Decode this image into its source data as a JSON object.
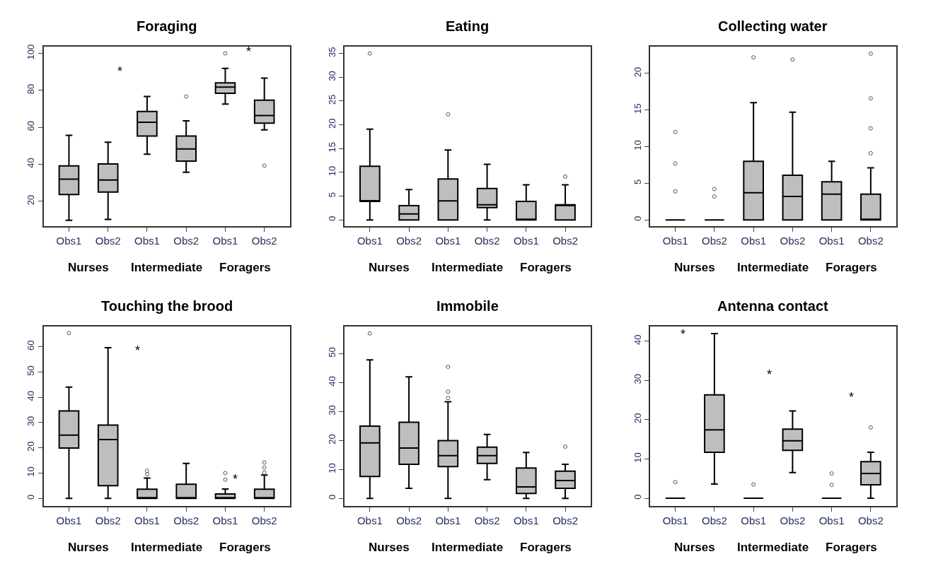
{
  "chart_data": [
    {
      "type": "box",
      "title": "Foraging",
      "categories": [
        "Obs1",
        "Obs2",
        "Obs1",
        "Obs2",
        "Obs1",
        "Obs2"
      ],
      "ylim": [
        6.6,
        103.8
      ],
      "yticks": [
        20,
        40,
        60,
        80,
        100
      ],
      "series": [
        {
          "color": "#bebebe",
          "boxes": [
            {
              "low": 9.7,
              "q1": 23.7,
              "median": 32,
              "q3": 39.2,
              "high": 55.7
            },
            {
              "low": 10.2,
              "q1": 25,
              "median": 31.5,
              "q3": 40.2,
              "high": 52
            },
            {
              "low": 45.5,
              "q1": 55.3,
              "median": 62.8,
              "q3": 68.6,
              "high": 76.7
            },
            {
              "low": 35.7,
              "q1": 41.7,
              "median": 48.3,
              "q3": 55.3,
              "high": 63.5,
              "outliers": [
                76.7
              ]
            },
            {
              "low": 72.6,
              "q1": 78.4,
              "median": 81.8,
              "q3": 84.1,
              "high": 91.9,
              "outliers": [
                100
              ]
            },
            {
              "low": 58.6,
              "q1": 62.3,
              "median": 66.4,
              "q3": 74.7,
              "high": 86.6,
              "outliers": [
                39.3
              ]
            }
          ]
        }
      ],
      "annotations": [
        "Nurses",
        "Intermediate",
        "Foragers",
        "*",
        "*"
      ]
    },
    {
      "type": "box",
      "title": "Eating",
      "categories": [
        "Obs1",
        "Obs2",
        "Obs1",
        "Obs2",
        "Obs1",
        "Obs2"
      ],
      "ylim": [
        -1.3,
        36.5
      ],
      "yticks": [
        0,
        5,
        10,
        15,
        20,
        25,
        30,
        35
      ],
      "series": [
        {
          "color": "#bebebe",
          "boxes": [
            {
              "low": 0,
              "q1": 3.9,
              "median": 3.9,
              "q3": 11.3,
              "high": 19.1,
              "outliers": [
                35
              ]
            },
            {
              "low": 0,
              "q1": 0,
              "median": 1.25,
              "q3": 3,
              "high": 6.4
            },
            {
              "low": 0,
              "q1": 0,
              "median": 4,
              "q3": 8.6,
              "high": 14.7,
              "outliers": [
                22.2
              ]
            },
            {
              "low": 0,
              "q1": 2.6,
              "median": 3.2,
              "q3": 6.6,
              "high": 11.7
            },
            {
              "low": 0,
              "q1": 0,
              "median": 0,
              "q3": 3.9,
              "high": 7.4
            },
            {
              "low": 0,
              "q1": 0,
              "median": 3.2,
              "q3": 3.2,
              "high": 7.4,
              "outliers": [
                9.1
              ]
            }
          ]
        }
      ],
      "annotations": [
        "Nurses",
        "Intermediate",
        "Foragers"
      ]
    },
    {
      "type": "box",
      "title": "Collecting water",
      "categories": [
        "Obs1",
        "Obs2",
        "Obs1",
        "Obs2",
        "Obs1",
        "Obs2"
      ],
      "ylim": [
        -0.85,
        23.7
      ],
      "yticks": [
        0,
        5,
        10,
        15,
        20
      ],
      "series": [
        {
          "colors": [
            "#000000",
            "#000000",
            "#bebebe",
            "#bebebe",
            "#bebebe",
            "#bebebe"
          ],
          "boxes": [
            {
              "low": 0,
              "q1": 0,
              "median": 0,
              "q3": 0,
              "high": 0,
              "outliers": [
                12,
                7.7,
                3.9
              ]
            },
            {
              "low": 0,
              "q1": 0,
              "median": 0,
              "q3": 0,
              "high": 0,
              "outliers": [
                4.2,
                3.2
              ]
            },
            {
              "low": 0,
              "q1": 0,
              "median": 3.7,
              "q3": 8,
              "high": 16,
              "outliers": [
                22.2
              ]
            },
            {
              "low": 0,
              "q1": 0,
              "median": 3.2,
              "q3": 6.1,
              "high": 14.7,
              "outliers": [
                21.9
              ]
            },
            {
              "low": 0,
              "q1": 0,
              "median": 3.5,
              "q3": 5.2,
              "high": 8
            },
            {
              "low": 0,
              "q1": 0,
              "median": 0,
              "q3": 3.5,
              "high": 7.1,
              "outliers": [
                22.7,
                16.6,
                12.5,
                9.1
              ]
            }
          ]
        }
      ],
      "annotations": [
        "Nurses",
        "Intermediate",
        "Foragers"
      ]
    },
    {
      "type": "box",
      "title": "Touching the brood",
      "categories": [
        "Obs1",
        "Obs2",
        "Obs1",
        "Obs2",
        "Obs1",
        "Obs2"
      ],
      "ylim": [
        -2.9,
        68
      ],
      "yticks": [
        0,
        10,
        20,
        30,
        40,
        50,
        60
      ],
      "series": [
        {
          "color": "#bebebe",
          "boxes": [
            {
              "low": 0,
              "q1": 19.9,
              "median": 25,
              "q3": 34.6,
              "high": 44,
              "outliers": [
                65.4
              ]
            },
            {
              "low": 0,
              "q1": 5,
              "median": 23.3,
              "q3": 29,
              "high": 59.6
            },
            {
              "low": 0,
              "q1": 0,
              "median": 0,
              "q3": 3.6,
              "high": 8,
              "outliers": [
                10.9,
                9.5
              ]
            },
            {
              "low": 0,
              "q1": 0,
              "median": 0,
              "q3": 5.6,
              "high": 13.8
            },
            {
              "low": 0,
              "q1": 0,
              "median": 0,
              "q3": 1.7,
              "high": 3.7,
              "outliers": [
                10,
                7.4
              ]
            },
            {
              "low": 0,
              "q1": 0,
              "median": 0,
              "q3": 3.6,
              "high": 9.2,
              "outliers": [
                14.2,
                12.2,
                10.2
              ]
            }
          ]
        }
      ],
      "annotations": [
        "Nurses",
        "Intermediate",
        "Foragers",
        "*",
        "*"
      ]
    },
    {
      "type": "box",
      "title": "Immobile",
      "categories": [
        "Obs1",
        "Obs2",
        "Obs1",
        "Obs2",
        "Obs1",
        "Obs2"
      ],
      "ylim": [
        -2.5,
        59.4
      ],
      "yticks": [
        0,
        10,
        20,
        30,
        40,
        50
      ],
      "series": [
        {
          "color": "#bebebe",
          "boxes": [
            {
              "low": 0,
              "q1": 7.6,
              "median": 19.2,
              "q3": 25,
              "high": 47.9,
              "outliers": [
                57
              ]
            },
            {
              "low": 3.5,
              "q1": 11.8,
              "median": 17.4,
              "q3": 26.3,
              "high": 42
            },
            {
              "low": 0,
              "q1": 11,
              "median": 14.8,
              "q3": 20,
              "high": 33.4,
              "outliers": [
                45.5,
                36.9,
                34.7
              ]
            },
            {
              "low": 6.5,
              "q1": 12.1,
              "median": 14.8,
              "q3": 17.7,
              "high": 22.1
            },
            {
              "low": 0,
              "q1": 1.7,
              "median": 4,
              "q3": 10.5,
              "high": 15.9
            },
            {
              "low": 0,
              "q1": 3.5,
              "median": 6.2,
              "q3": 9.4,
              "high": 11.8,
              "outliers": [
                17.9
              ]
            }
          ]
        }
      ],
      "annotations": [
        "Nurses",
        "Intermediate",
        "Foragers"
      ]
    },
    {
      "type": "box",
      "title": "Antenna contact",
      "categories": [
        "Obs1",
        "Obs2",
        "Obs1",
        "Obs2",
        "Obs1",
        "Obs2"
      ],
      "ylim": [
        -1.9,
        43.7
      ],
      "yticks": [
        0,
        10,
        20,
        30,
        40
      ],
      "series": [
        {
          "colors": [
            "#000000",
            "#bebebe",
            "#000000",
            "#bebebe",
            "#000000",
            "#bebebe"
          ],
          "boxes": [
            {
              "low": 0,
              "q1": 0,
              "median": 0,
              "q3": 0,
              "high": 0,
              "outliers": [
                4.1
              ]
            },
            {
              "low": 3.6,
              "q1": 11.7,
              "median": 17.4,
              "q3": 26.3,
              "high": 41.9
            },
            {
              "low": 0,
              "q1": 0,
              "median": 0,
              "q3": 0,
              "high": 0,
              "outliers": [
                3.5
              ]
            },
            {
              "low": 6.5,
              "q1": 12.2,
              "median": 14.6,
              "q3": 17.6,
              "high": 22.2
            },
            {
              "low": 0,
              "q1": 0,
              "median": 0,
              "q3": 0,
              "high": 0,
              "outliers": [
                6.3,
                3.4
              ]
            },
            {
              "low": 0,
              "q1": 3.4,
              "median": 6.3,
              "q3": 9.3,
              "high": 11.7,
              "outliers": [
                18
              ]
            }
          ]
        }
      ],
      "annotations": [
        "Nurses",
        "Intermediate",
        "Foragers",
        "*",
        "*",
        "*"
      ]
    }
  ]
}
